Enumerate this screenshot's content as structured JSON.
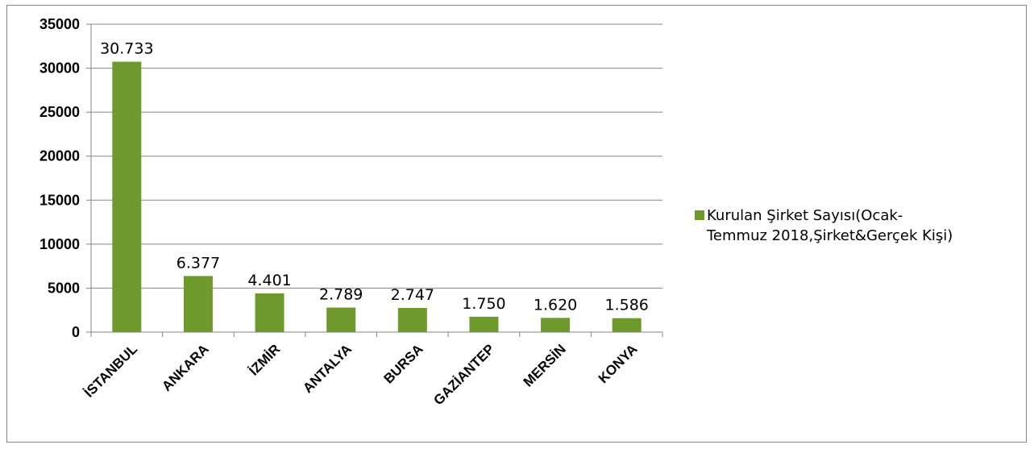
{
  "chart_data": {
    "type": "bar",
    "categories": [
      "İSTANBUL",
      "ANKARA",
      "İZMİR",
      "ANTALYA",
      "BURSA",
      "GAZİANTEP",
      "MERSİN",
      "KONYA"
    ],
    "series": [
      {
        "name": "Kurulan Şirket Sayısı(Ocak-Temmuz 2018,Şirket&Gerçek Kişi)",
        "values": [
          30733,
          6377,
          4401,
          2789,
          2747,
          1750,
          1620,
          1586
        ],
        "data_labels": [
          "30.733",
          "6.377",
          "4.401",
          "2.789",
          "2.747",
          "1.750",
          "1.620",
          "1.586"
        ]
      }
    ],
    "yticks": [
      "0",
      "5000",
      "10000",
      "15000",
      "20000",
      "25000",
      "30000",
      "35000"
    ],
    "ylim": [
      0,
      35000
    ],
    "grid": true,
    "legend_position": "right",
    "bar_color": "#6E9A2D",
    "gridline_color": "#868686"
  },
  "legend": {
    "line1": "Kurulan Şirket Sayısı(Ocak-",
    "line2": "Temmuz 2018,Şirket&Gerçek Kişi)"
  }
}
